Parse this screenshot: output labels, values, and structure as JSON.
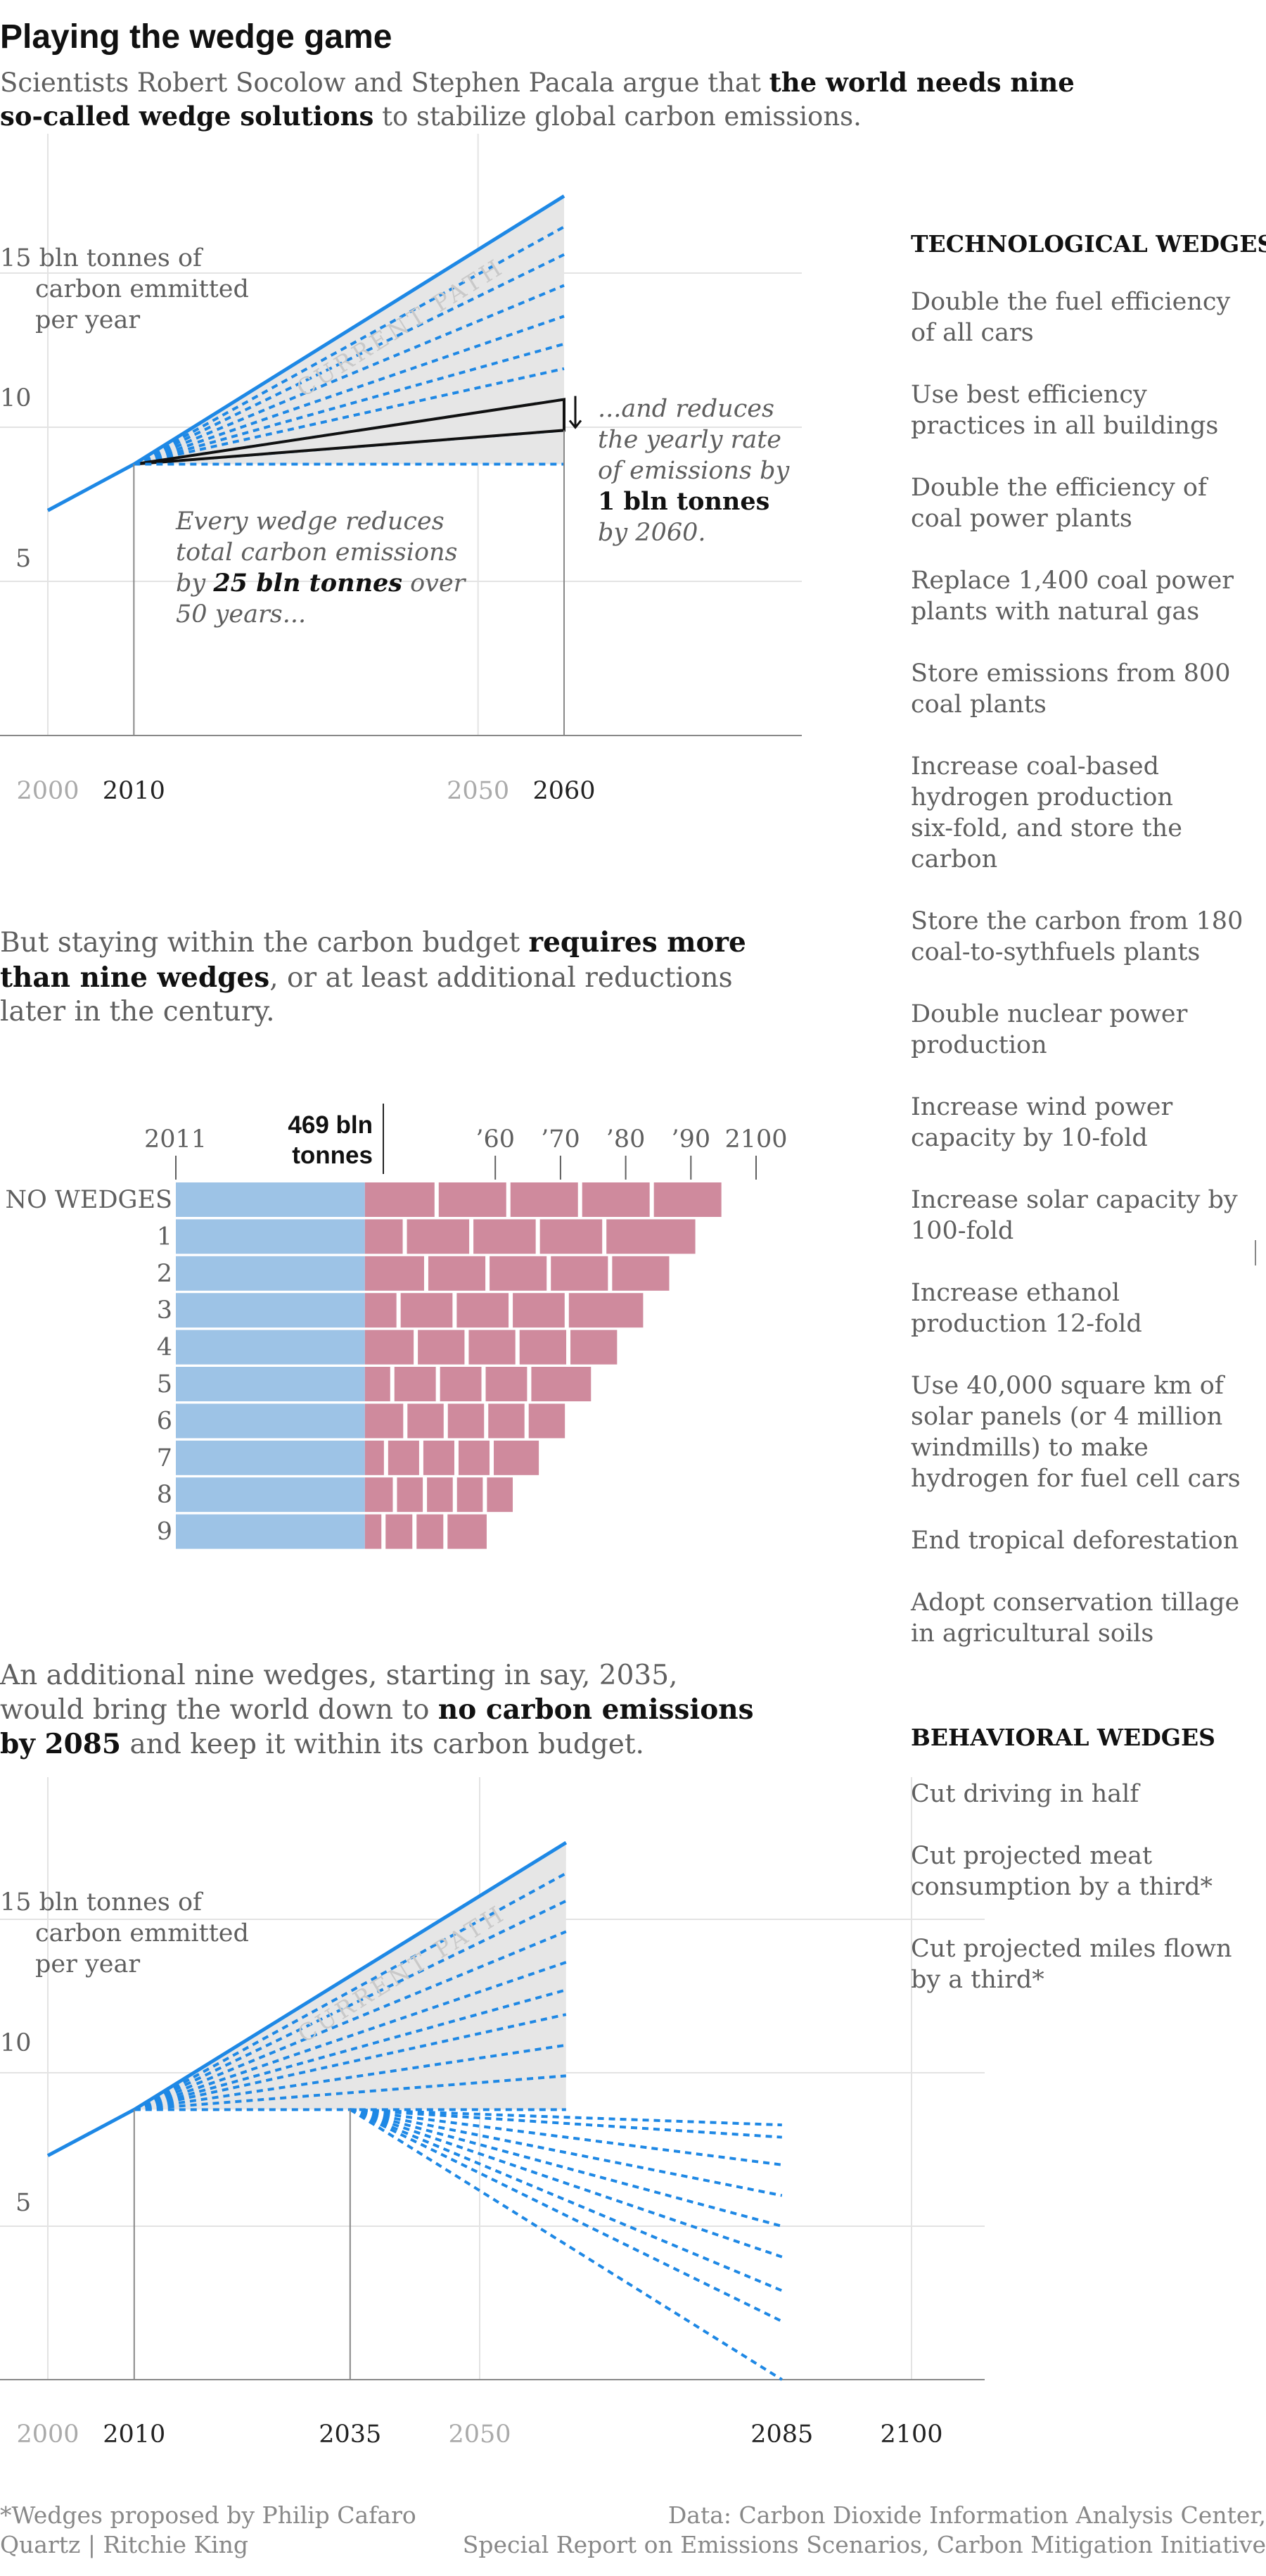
{
  "title": "Playing the wedge game",
  "subtitle": {
    "pre": "Scientists Robert Socolow and Stephen Pacala argue that ",
    "bold1": "the world needs nine",
    "bold2": "so-called wedge solutions",
    "post": " to stabilize global carbon emissions."
  },
  "colors": {
    "blue": "#1e88e5",
    "grey_fill": "#e6e6e6",
    "grid": "#e3e3e3",
    "axis": "#888888",
    "text_dark": "#222222",
    "text_grey": "#5f5f5f",
    "text_light": "#aaaaaa",
    "bar_blue": "#9dc3e6",
    "bar_pink": "#cf8a9d"
  },
  "chart_data": [
    {
      "type": "line",
      "name": "chart1",
      "ytick_labels": [
        "15 bln tonnes of",
        "carbon emmitted",
        "per year",
        "10",
        "5"
      ],
      "yticks": [
        15,
        10,
        5
      ],
      "xtick_labels": [
        {
          "label": "2000",
          "x": 2000,
          "muted": true
        },
        {
          "label": "2010",
          "x": 2010,
          "muted": false
        },
        {
          "label": "2050",
          "x": 2050,
          "muted": true
        },
        {
          "label": "2060",
          "x": 2060,
          "muted": false
        }
      ],
      "current_path": {
        "x": [
          2000,
          2010,
          2060
        ],
        "y": [
          7.3,
          8.8,
          17.5
        ]
      },
      "current_path_label": "CURRENT PATH",
      "flat_path": {
        "x": [
          2010,
          2060
        ],
        "y": [
          8.8,
          8.8
        ]
      },
      "wedge_end_values_2060": [
        8.8,
        9.9,
        10.9,
        11.9,
        12.7,
        13.6,
        14.6,
        15.6,
        16.5,
        17.5
      ],
      "highlighted_wedge": {
        "lower_2060": 9.9,
        "upper_2060": 10.9
      },
      "annotation_left": {
        "l1": "Every wedge reduces",
        "l2": "total carbon emissions",
        "l3pre": "by ",
        "l3bold": "25 bln tonnes",
        "l3post": " over",
        "l4": "50 years..."
      },
      "annotation_right": {
        "l1": "...and reduces",
        "l2": "the yearly rate",
        "l3": "of emissions by",
        "l4bold": "1 bln tonnes",
        "l5": "by 2060."
      }
    },
    {
      "type": "bar",
      "name": "chart2",
      "header_label_left": "2011",
      "header_budget_l1": "469 bln",
      "header_budget_l2": "tonnes",
      "header_ticks": [
        "’60",
        "’70",
        "’80",
        "’90",
        "2100"
      ],
      "header_tick_years": [
        2060,
        2070,
        2080,
        2090,
        2100
      ],
      "categories": [
        "NO WEDGES",
        "1",
        "2",
        "3",
        "4",
        "5",
        "6",
        "7",
        "8",
        "9"
      ],
      "budget_years": [
        2011,
        2040
      ],
      "overshoot_end_years": [
        2095,
        2091,
        2087,
        2083,
        2079,
        2075,
        2071,
        2067,
        2063,
        2059
      ],
      "overshoot_blocks": [
        5,
        5,
        5,
        5,
        5,
        5,
        5,
        5,
        5,
        4
      ]
    },
    {
      "type": "line",
      "name": "chart3",
      "ytick_labels": [
        "15 bln tonnes of",
        "carbon emmitted",
        "per year",
        "10",
        "5"
      ],
      "yticks": [
        15,
        10,
        5
      ],
      "xtick_labels": [
        {
          "label": "2000",
          "x": 2000,
          "muted": true
        },
        {
          "label": "2010",
          "x": 2010,
          "muted": false
        },
        {
          "label": "2035",
          "x": 2035,
          "muted": false
        },
        {
          "label": "2050",
          "x": 2050,
          "muted": true
        },
        {
          "label": "2085",
          "x": 2085,
          "muted": false
        },
        {
          "label": "2100",
          "x": 2100,
          "muted": false
        }
      ],
      "current_path": {
        "x": [
          2000,
          2010,
          2060
        ],
        "y": [
          7.3,
          8.8,
          17.5
        ]
      },
      "current_path_label": "CURRENT PATH",
      "wedge_end_values_2060": [
        8.8,
        9.9,
        10.9,
        11.9,
        12.7,
        13.6,
        14.6,
        15.6,
        16.5,
        17.5
      ],
      "reduction_start": {
        "x": 2035,
        "y": 8.8
      },
      "reduction_end_values_2085": [
        8.3,
        7.9,
        7.0,
        6.0,
        5.0,
        4.0,
        2.9,
        1.9,
        0.0
      ]
    }
  ],
  "text_block_2": {
    "l1pre": "But staying within the carbon budget ",
    "l1bold": "requires more",
    "l2bold": "than nine wedges",
    "l2post": ", or at least additional reductions",
    "l3": "later in the century."
  },
  "text_block_3": {
    "l1": "An additional nine wedges, starting in say, 2035,",
    "l2pre": "would bring the world down to ",
    "l2bold": "no carbon emissions",
    "l3bold": "by 2085",
    "l3post": " and keep it within its carbon budget."
  },
  "tech_heading": "TECHNOLOGICAL WEDGES",
  "tech_items": [
    [
      "Double the fuel efficiency",
      "of all cars"
    ],
    [
      "Use best efficiency",
      "practices in all buildings"
    ],
    [
      "Double the efficiency of",
      "coal power plants"
    ],
    [
      "Replace 1,400 coal power",
      "plants with natural gas"
    ],
    [
      "Store emissions from 800",
      "coal plants"
    ],
    [
      "Increase coal-based",
      "hydrogen production",
      "six-fold, and store the",
      "carbon"
    ],
    [
      "Store the carbon from 180",
      "coal-to-sythfuels plants"
    ],
    [
      "Double nuclear power",
      "production"
    ],
    [
      "Increase wind power",
      "capacity by 10-fold"
    ],
    [
      "Increase solar capacity by",
      "100-fold"
    ],
    [
      "Increase ethanol",
      "production 12-fold"
    ],
    [
      "Use 40,000 square km of",
      "solar panels (or 4 million",
      "windmills) to make",
      "hydrogen for fuel cell cars"
    ],
    [
      "End tropical deforestation"
    ],
    [
      "Adopt conservation tillage",
      "in agricultural soils"
    ]
  ],
  "behav_heading": "BEHAVIORAL WEDGES",
  "behav_items": [
    [
      "Cut driving in half"
    ],
    [
      "Cut projected meat",
      "consumption by a third*"
    ],
    [
      "Cut projected miles flown",
      "by a third*"
    ]
  ],
  "footer": {
    "left1": "*Wedges proposed by Philip Cafaro",
    "left2": "Quartz | Ritchie King",
    "right1": "Data: Carbon Dioxide Information Analysis Center,",
    "right2": "Special Report on Emissions Scenarios, Carbon Mitigation Initiative"
  }
}
